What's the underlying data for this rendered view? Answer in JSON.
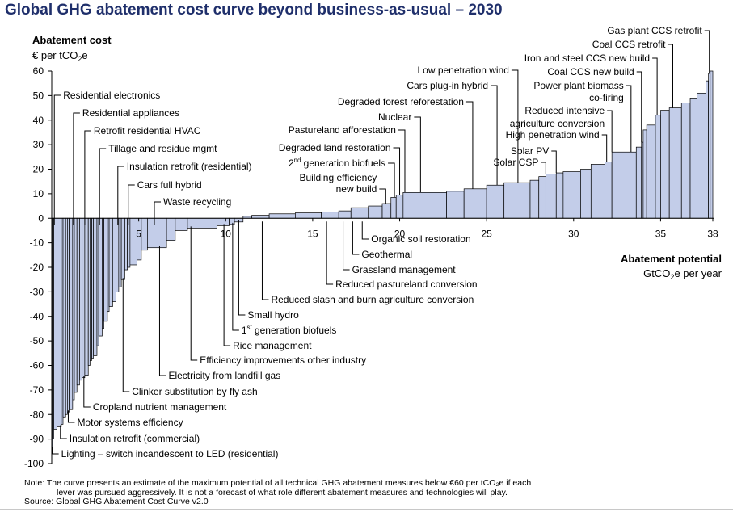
{
  "title": "Global GHG abatement cost curve beyond business-as-usual – 2030",
  "colors": {
    "bar_fill": "#c3cde9",
    "bar_edge": "#000000",
    "title": "#1f2f6b"
  },
  "footnote": {
    "line1": "Note: The curve presents an estimate of the maximum potential of all technical GHG abatement measures below €60 per tCO₂e if each",
    "line2": "lever was pursued aggressively. It is not a forecast of what role different abatement measures and technologies will play.",
    "line3": "Source: Global GHG Abatement Cost Curve v2.0"
  },
  "chart_data": {
    "type": "bar",
    "subtype": "marginal-abatement-cost-curve",
    "title": "Global GHG abatement cost curve beyond business-as-usual – 2030",
    "ylabel": "Abatement cost",
    "yunit": "€ per tCO₂e",
    "xlabel": "Abatement potential",
    "xunit": "GtCO₂e per year",
    "ylim": [
      -100,
      60
    ],
    "xlim": [
      0,
      38
    ],
    "y_ticks": [
      "60",
      "50",
      "40",
      "30",
      "20",
      "10",
      "0",
      "-10",
      "-20",
      "-30",
      "-40",
      "-50",
      "-60",
      "-70",
      "-80",
      "-90",
      "-100"
    ],
    "x_ticks": [
      "5",
      "10",
      "15",
      "20",
      "25",
      "30",
      "35",
      "38"
    ],
    "grid": false,
    "legend": "none",
    "bars": [
      {
        "x0": 0.0,
        "x1": 0.05,
        "y": -94
      },
      {
        "x0": 0.05,
        "x1": 0.12,
        "y": -90
      },
      {
        "x0": 0.12,
        "x1": 0.3,
        "y": -86
      },
      {
        "x0": 0.3,
        "x1": 0.55,
        "y": -85
      },
      {
        "x0": 0.55,
        "x1": 0.65,
        "y": -84
      },
      {
        "x0": 0.65,
        "x1": 0.8,
        "y": -81
      },
      {
        "x0": 0.8,
        "x1": 0.9,
        "y": -80
      },
      {
        "x0": 0.9,
        "x1": 1.0,
        "y": -79
      },
      {
        "x0": 1.0,
        "x1": 1.2,
        "y": -78
      },
      {
        "x0": 1.2,
        "x1": 1.3,
        "y": -74
      },
      {
        "x0": 1.3,
        "x1": 1.45,
        "y": -71
      },
      {
        "x0": 1.45,
        "x1": 1.6,
        "y": -68
      },
      {
        "x0": 1.6,
        "x1": 1.75,
        "y": -66
      },
      {
        "x0": 1.75,
        "x1": 1.9,
        "y": -65
      },
      {
        "x0": 1.9,
        "x1": 2.1,
        "y": -64
      },
      {
        "x0": 2.1,
        "x1": 2.2,
        "y": -60
      },
      {
        "x0": 2.2,
        "x1": 2.3,
        "y": -58
      },
      {
        "x0": 2.3,
        "x1": 2.4,
        "y": -57
      },
      {
        "x0": 2.4,
        "x1": 2.6,
        "y": -56
      },
      {
        "x0": 2.6,
        "x1": 2.7,
        "y": -52
      },
      {
        "x0": 2.7,
        "x1": 2.9,
        "y": -48
      },
      {
        "x0": 2.9,
        "x1": 3.0,
        "y": -45
      },
      {
        "x0": 3.0,
        "x1": 3.2,
        "y": -42
      },
      {
        "x0": 3.2,
        "x1": 3.3,
        "y": -38
      },
      {
        "x0": 3.3,
        "x1": 3.5,
        "y": -36
      },
      {
        "x0": 3.5,
        "x1": 3.7,
        "y": -34
      },
      {
        "x0": 3.7,
        "x1": 3.85,
        "y": -30
      },
      {
        "x0": 3.85,
        "x1": 4.0,
        "y": -28
      },
      {
        "x0": 4.0,
        "x1": 4.2,
        "y": -25
      },
      {
        "x0": 4.2,
        "x1": 4.35,
        "y": -21
      },
      {
        "x0": 4.35,
        "x1": 4.5,
        "y": -20
      },
      {
        "x0": 4.5,
        "x1": 4.9,
        "y": -19
      },
      {
        "x0": 4.9,
        "x1": 5.15,
        "y": -17
      },
      {
        "x0": 5.15,
        "x1": 5.5,
        "y": -13
      },
      {
        "x0": 5.5,
        "x1": 6.6,
        "y": -12
      },
      {
        "x0": 6.6,
        "x1": 7.1,
        "y": -9
      },
      {
        "x0": 7.1,
        "x1": 7.8,
        "y": -5
      },
      {
        "x0": 7.8,
        "x1": 9.5,
        "y": -4
      },
      {
        "x0": 9.5,
        "x1": 10.2,
        "y": -3
      },
      {
        "x0": 10.2,
        "x1": 10.5,
        "y": -2.5
      },
      {
        "x0": 10.5,
        "x1": 11.0,
        "y": -1.5
      },
      {
        "x0": 11.0,
        "x1": 11.5,
        "y": 0.8
      },
      {
        "x0": 11.5,
        "x1": 12.5,
        "y": 1.2
      },
      {
        "x0": 12.5,
        "x1": 14.0,
        "y": 1.8
      },
      {
        "x0": 14.0,
        "x1": 15.5,
        "y": 2.2
      },
      {
        "x0": 15.5,
        "x1": 16.5,
        "y": 2.5
      },
      {
        "x0": 16.5,
        "x1": 17.2,
        "y": 3.0
      },
      {
        "x0": 17.2,
        "x1": 18.2,
        "y": 4.3
      },
      {
        "x0": 18.2,
        "x1": 19.0,
        "y": 5.0
      },
      {
        "x0": 19.0,
        "x1": 19.5,
        "y": 6.0
      },
      {
        "x0": 19.5,
        "x1": 19.8,
        "y": 8.5
      },
      {
        "x0": 19.8,
        "x1": 20.2,
        "y": 9.5
      },
      {
        "x0": 20.2,
        "x1": 22.7,
        "y": 10.5
      },
      {
        "x0": 22.7,
        "x1": 23.7,
        "y": 11.0
      },
      {
        "x0": 23.7,
        "x1": 25.0,
        "y": 12.0
      },
      {
        "x0": 25.0,
        "x1": 26.0,
        "y": 13.5
      },
      {
        "x0": 26.0,
        "x1": 27.5,
        "y": 14.5
      },
      {
        "x0": 27.5,
        "x1": 28.0,
        "y": 15.5
      },
      {
        "x0": 28.0,
        "x1": 28.4,
        "y": 17.0
      },
      {
        "x0": 28.4,
        "x1": 29.0,
        "y": 18.0
      },
      {
        "x0": 29.0,
        "x1": 29.4,
        "y": 18.5
      },
      {
        "x0": 29.4,
        "x1": 30.4,
        "y": 19.0
      },
      {
        "x0": 30.4,
        "x1": 31.0,
        "y": 20.0
      },
      {
        "x0": 31.0,
        "x1": 31.8,
        "y": 22.0
      },
      {
        "x0": 31.8,
        "x1": 32.2,
        "y": 23.0
      },
      {
        "x0": 32.2,
        "x1": 33.6,
        "y": 27.0
      },
      {
        "x0": 33.6,
        "x1": 33.9,
        "y": 29.0
      },
      {
        "x0": 33.9,
        "x1": 34.0,
        "y": 31.0
      },
      {
        "x0": 34.0,
        "x1": 34.2,
        "y": 36.0
      },
      {
        "x0": 34.2,
        "x1": 34.7,
        "y": 38.0
      },
      {
        "x0": 34.7,
        "x1": 35.0,
        "y": 42.0
      },
      {
        "x0": 35.0,
        "x1": 35.5,
        "y": 44.0
      },
      {
        "x0": 35.5,
        "x1": 36.2,
        "y": 45.0
      },
      {
        "x0": 36.2,
        "x1": 36.7,
        "y": 47.0
      },
      {
        "x0": 36.7,
        "x1": 37.1,
        "y": 49.0
      },
      {
        "x0": 37.1,
        "x1": 37.6,
        "y": 51.0
      },
      {
        "x0": 37.6,
        "x1": 37.75,
        "y": 56.0
      },
      {
        "x0": 37.75,
        "x1": 37.85,
        "y": 59.0
      },
      {
        "x0": 37.85,
        "x1": 38.0,
        "y": 60.0
      }
    ],
    "annotations_top_left": [
      {
        "text": "Residential electronics",
        "x": 0.15
      },
      {
        "text": "Residential appliances",
        "x": 1.25
      },
      {
        "text": "Retrofit residential HVAC",
        "x": 1.9
      },
      {
        "text": "Tillage and residue mgmt",
        "x": 2.75
      },
      {
        "text": "Insulation retrofit (residential)",
        "x": 3.8
      },
      {
        "text": "Cars full hybrid",
        "x": 4.4
      },
      {
        "text": "Waste recycling",
        "x": 5.9
      }
    ],
    "annotations_bottom_left": [
      {
        "text": "Lighting – switch incandescent to LED (residential)",
        "x": 0.03
      },
      {
        "text": "Insulation retrofit (commercial)",
        "x": 0.5
      },
      {
        "text": "Motor systems efficiency",
        "x": 0.95
      },
      {
        "text": "Cropland nutrient management",
        "x": 1.85
      },
      {
        "text": "Clinker substitution by fly ash",
        "x": 4.1
      },
      {
        "text": "Electricity from landfill gas",
        "x": 6.2
      },
      {
        "text": "Efficiency improvements other industry",
        "x": 8.0
      },
      {
        "text": "Rice management",
        "x": 9.9
      },
      {
        "text": "1st generation biofuels",
        "x": 10.4
      },
      {
        "text": "Small hydro",
        "x": 10.75
      },
      {
        "text": "Reduced slash and burn agriculture conversion",
        "x": 12.1
      },
      {
        "text": "Reduced pastureland conversion",
        "x": 15.8
      },
      {
        "text": "Grassland management",
        "x": 16.75
      },
      {
        "text": "Geothermal",
        "x": 17.3
      },
      {
        "text": "Organic soil restoration",
        "x": 17.85
      }
    ],
    "annotations_top_middle": [
      {
        "text": "Building efficiency",
        "text2": "new build",
        "x": 19.2
      },
      {
        "text": "2nd generation biofuels",
        "x": 19.7
      },
      {
        "text": "Degraded land restoration",
        "x": 20.0
      },
      {
        "text": "Pastureland afforestation",
        "x": 20.3
      },
      {
        "text": "Nuclear",
        "x": 21.2
      },
      {
        "text": "Degraded forest reforestation",
        "x": 24.2
      },
      {
        "text": "Cars plug-in hybrid",
        "x": 25.6
      },
      {
        "text": "Low penetration wind",
        "x": 26.8
      }
    ],
    "annotations_top_right": [
      {
        "text": "Solar CSP",
        "x": 28.4
      },
      {
        "text": "Solar PV",
        "x": 29.0
      },
      {
        "text": "High penetration wind",
        "x": 31.9
      },
      {
        "text": "Reduced intensive",
        "text2": "agriculture conversion",
        "x": 32.2
      },
      {
        "text": "Power plant biomass",
        "text2": "co-firing",
        "x": 33.3
      },
      {
        "text": "Coal CCS new build",
        "x": 33.9
      },
      {
        "text": "Iron and steel CCS new build",
        "x": 34.8
      },
      {
        "text": "Coal CCS retrofit",
        "x": 35.7
      },
      {
        "text": "Gas plant CCS retrofit",
        "x": 37.8
      }
    ]
  }
}
